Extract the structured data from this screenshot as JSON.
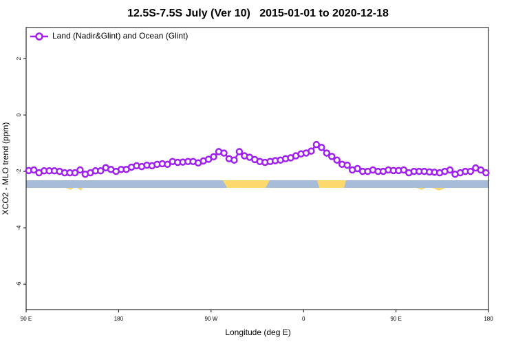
{
  "chart_data": {
    "type": "line",
    "title": "12.5S-7.5S July (Ver 10)   2015-01-01 to 2020-12-18",
    "x_label": "Longitude (deg E)",
    "y_label": "XCO2 - MLO trend (ppm)",
    "x": [
      92.5,
      97.5,
      102.5,
      107.5,
      112.5,
      117.5,
      122.5,
      127.5,
      132.5,
      137.5,
      142.5,
      147.5,
      152.5,
      157.5,
      162.5,
      167.5,
      172.5,
      177.5,
      182.5,
      187.5,
      192.5,
      197.5,
      202.5,
      207.5,
      212.5,
      217.5,
      222.5,
      227.5,
      232.5,
      237.5,
      242.5,
      247.5,
      252.5,
      257.5,
      262.5,
      267.5,
      272.5,
      277.5,
      282.5,
      287.5,
      292.5,
      297.5,
      302.5,
      307.5,
      312.5,
      317.5,
      322.5,
      327.5,
      332.5,
      337.5,
      342.5,
      347.5,
      352.5,
      357.5,
      362.5,
      367.5,
      372.5,
      377.5,
      382.5,
      387.5,
      392.5,
      397.5,
      402.5,
      407.5,
      412.5,
      417.5,
      422.5,
      427.5,
      432.5,
      437.5,
      442.5,
      447.5,
      452.5,
      457.5,
      462.5,
      467.5,
      472.5,
      477.5,
      482.5,
      487.5,
      492.5,
      497.5,
      502.5,
      507.5,
      512.5,
      517.5,
      522.5,
      527.5,
      532.5,
      537.5
    ],
    "series": [
      {
        "name": "Land (Nadir&Glint) and Ocean (Glint)",
        "color": "#a020f0",
        "values": [
          -1.97,
          -1.95,
          -2.05,
          -1.98,
          -1.98,
          -1.98,
          -2.0,
          -2.05,
          -2.05,
          -2.05,
          -1.95,
          -2.1,
          -2.05,
          -1.98,
          -1.98,
          -1.87,
          -1.93,
          -2.0,
          -1.93,
          -1.93,
          -1.85,
          -1.8,
          -1.83,
          -1.78,
          -1.8,
          -1.75,
          -1.73,
          -1.75,
          -1.65,
          -1.68,
          -1.67,
          -1.65,
          -1.65,
          -1.7,
          -1.63,
          -1.57,
          -1.48,
          -1.3,
          -1.35,
          -1.55,
          -1.6,
          -1.3,
          -1.45,
          -1.5,
          -1.58,
          -1.65,
          -1.68,
          -1.65,
          -1.62,
          -1.6,
          -1.55,
          -1.52,
          -1.45,
          -1.38,
          -1.35,
          -1.28,
          -1.05,
          -1.15,
          -1.35,
          -1.47,
          -1.6,
          -1.75,
          -1.78,
          -1.95,
          -1.9,
          -2.0,
          -2.0,
          -1.95,
          -2.0,
          -2.0,
          -1.95,
          -1.97,
          -1.97,
          -1.95,
          -2.05,
          -2.0,
          -2.0,
          -2.0,
          -2.02,
          -2.03,
          -2.05,
          -2.0,
          -1.95,
          -2.1,
          -2.05,
          -2.0,
          -2.0,
          -1.88,
          -1.95,
          -2.05
        ]
      }
    ],
    "xlim": [
      90,
      540
    ],
    "xticks": [
      {
        "value": 90,
        "label": "90 E"
      },
      180,
      {
        "value": 270,
        "label": "90 W"
      },
      {
        "value": 360,
        "label": "0"
      },
      {
        "value": 450,
        "label": "90 E"
      },
      {
        "value": 540,
        "label": "180"
      }
    ],
    "ylim": [
      -6.9,
      3.1
    ],
    "yticks": [
      2,
      0,
      -2,
      -4,
      -6
    ],
    "legend": "top-left"
  }
}
